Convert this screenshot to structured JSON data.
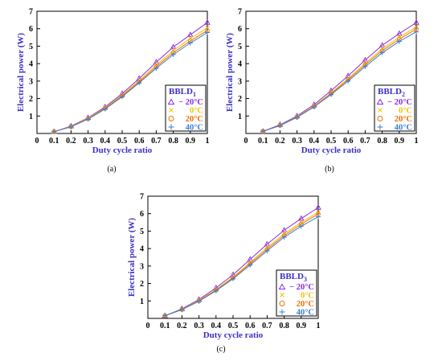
{
  "colors": {
    "minus20": "#8a2be2",
    "zero": "#f5c000",
    "twenty": "#f07000",
    "forty": "#3b7fd0",
    "axis_title": "#3a30c8",
    "legend_title": "#3a30c8"
  },
  "chart_data": [
    {
      "type": "line",
      "caption": "(a)",
      "title": "",
      "xlabel": "Duty cycle ratio",
      "ylabel": "Electrical power (W)",
      "xlim": [
        0,
        1
      ],
      "ylim": [
        0,
        7
      ],
      "x_ticks": [
        "0",
        "0.1",
        "0.2",
        "0.3",
        "0.4",
        "0.5",
        "0.6",
        "0.7",
        "0.8",
        "0.9",
        "1"
      ],
      "y_ticks": [
        "1",
        "2",
        "3",
        "4",
        "5",
        "6",
        "7"
      ],
      "grid": false,
      "legend": {
        "title_main": "BBLD",
        "title_sub": "1",
        "position": "right",
        "entries": [
          "− 20°C",
          "0°C",
          "20°C",
          "40°C"
        ]
      },
      "x": [
        0.1,
        0.2,
        0.3,
        0.4,
        0.5,
        0.6,
        0.7,
        0.8,
        0.9,
        1.0
      ],
      "series": [
        {
          "name": "− 20°C",
          "marker": "triangle",
          "values": [
            0.1,
            0.42,
            0.9,
            1.52,
            2.28,
            3.15,
            4.08,
            4.95,
            5.65,
            6.35
          ]
        },
        {
          "name": "0°C",
          "marker": "x",
          "values": [
            0.1,
            0.4,
            0.87,
            1.47,
            2.2,
            3.03,
            3.92,
            4.75,
            5.45,
            6.05
          ]
        },
        {
          "name": "20°C",
          "marker": "circle",
          "values": [
            0.1,
            0.39,
            0.84,
            1.43,
            2.15,
            2.96,
            3.82,
            4.63,
            5.3,
            5.9
          ]
        },
        {
          "name": "40°C",
          "marker": "plus",
          "values": [
            0.1,
            0.38,
            0.82,
            1.4,
            2.1,
            2.9,
            3.73,
            4.52,
            5.18,
            5.78
          ]
        }
      ]
    },
    {
      "type": "line",
      "caption": "(b)",
      "title": "",
      "xlabel": "Duty cycle ratio",
      "ylabel": "Electrical power (W)",
      "xlim": [
        0,
        1
      ],
      "ylim": [
        0,
        7
      ],
      "x_ticks": [
        "0",
        "0.1",
        "0.2",
        "0.3",
        "0.4",
        "0.5",
        "0.6",
        "0.7",
        "0.8",
        "0.9",
        "1"
      ],
      "y_ticks": [
        "1",
        "2",
        "3",
        "4",
        "5",
        "6",
        "7"
      ],
      "grid": false,
      "legend": {
        "title_main": "BBLD",
        "title_sub": "2",
        "position": "right",
        "entries": [
          "− 20°C",
          "0°C",
          "20°C",
          "40°C"
        ]
      },
      "x": [
        0.1,
        0.2,
        0.3,
        0.4,
        0.5,
        0.6,
        0.7,
        0.8,
        0.9,
        1.0
      ],
      "series": [
        {
          "name": "− 20°C",
          "marker": "triangle",
          "values": [
            0.12,
            0.5,
            1.0,
            1.65,
            2.45,
            3.3,
            4.2,
            5.05,
            5.72,
            6.35
          ]
        },
        {
          "name": "0°C",
          "marker": "x",
          "values": [
            0.12,
            0.47,
            0.95,
            1.57,
            2.33,
            3.15,
            4.02,
            4.85,
            5.52,
            6.1
          ]
        },
        {
          "name": "20°C",
          "marker": "circle",
          "values": [
            0.12,
            0.46,
            0.93,
            1.54,
            2.28,
            3.08,
            3.93,
            4.74,
            5.4,
            5.98
          ]
        },
        {
          "name": "40°C",
          "marker": "plus",
          "values": [
            0.12,
            0.45,
            0.92,
            1.52,
            2.23,
            3.0,
            3.83,
            4.62,
            5.27,
            5.82
          ]
        }
      ]
    },
    {
      "type": "line",
      "caption": "(c)",
      "title": "",
      "xlabel": "Duty cycle ratio",
      "ylabel": "Electrical power (W)",
      "xlim": [
        0,
        1
      ],
      "ylim": [
        0,
        7
      ],
      "x_ticks": [
        "0",
        "0.1",
        "0.2",
        "0.3",
        "0.4",
        "0.5",
        "0.6",
        "0.7",
        "0.8",
        "0.9",
        "1"
      ],
      "y_ticks": [
        "1",
        "2",
        "3",
        "4",
        "5",
        "6",
        "7"
      ],
      "grid": false,
      "legend": {
        "title_main": "BBLD",
        "title_sub": "3",
        "position": "right",
        "entries": [
          "− 20°C",
          "0°C",
          "20°C",
          "40°C"
        ]
      },
      "x": [
        0.1,
        0.2,
        0.3,
        0.4,
        0.5,
        0.6,
        0.7,
        0.8,
        0.9,
        1.0
      ],
      "series": [
        {
          "name": "− 20°C",
          "marker": "triangle",
          "values": [
            0.15,
            0.55,
            1.08,
            1.75,
            2.5,
            3.38,
            4.25,
            5.05,
            5.72,
            6.35
          ]
        },
        {
          "name": "0°C",
          "marker": "x",
          "values": [
            0.15,
            0.52,
            1.03,
            1.65,
            2.37,
            3.2,
            4.05,
            4.85,
            5.5,
            6.08
          ]
        },
        {
          "name": "20°C",
          "marker": "circle",
          "values": [
            0.15,
            0.51,
            1.0,
            1.62,
            2.32,
            3.13,
            3.96,
            4.75,
            5.4,
            5.98
          ]
        },
        {
          "name": "40°C",
          "marker": "plus",
          "values": [
            0.15,
            0.5,
            0.98,
            1.58,
            2.27,
            3.05,
            3.87,
            4.65,
            5.28,
            5.82
          ]
        }
      ]
    }
  ]
}
